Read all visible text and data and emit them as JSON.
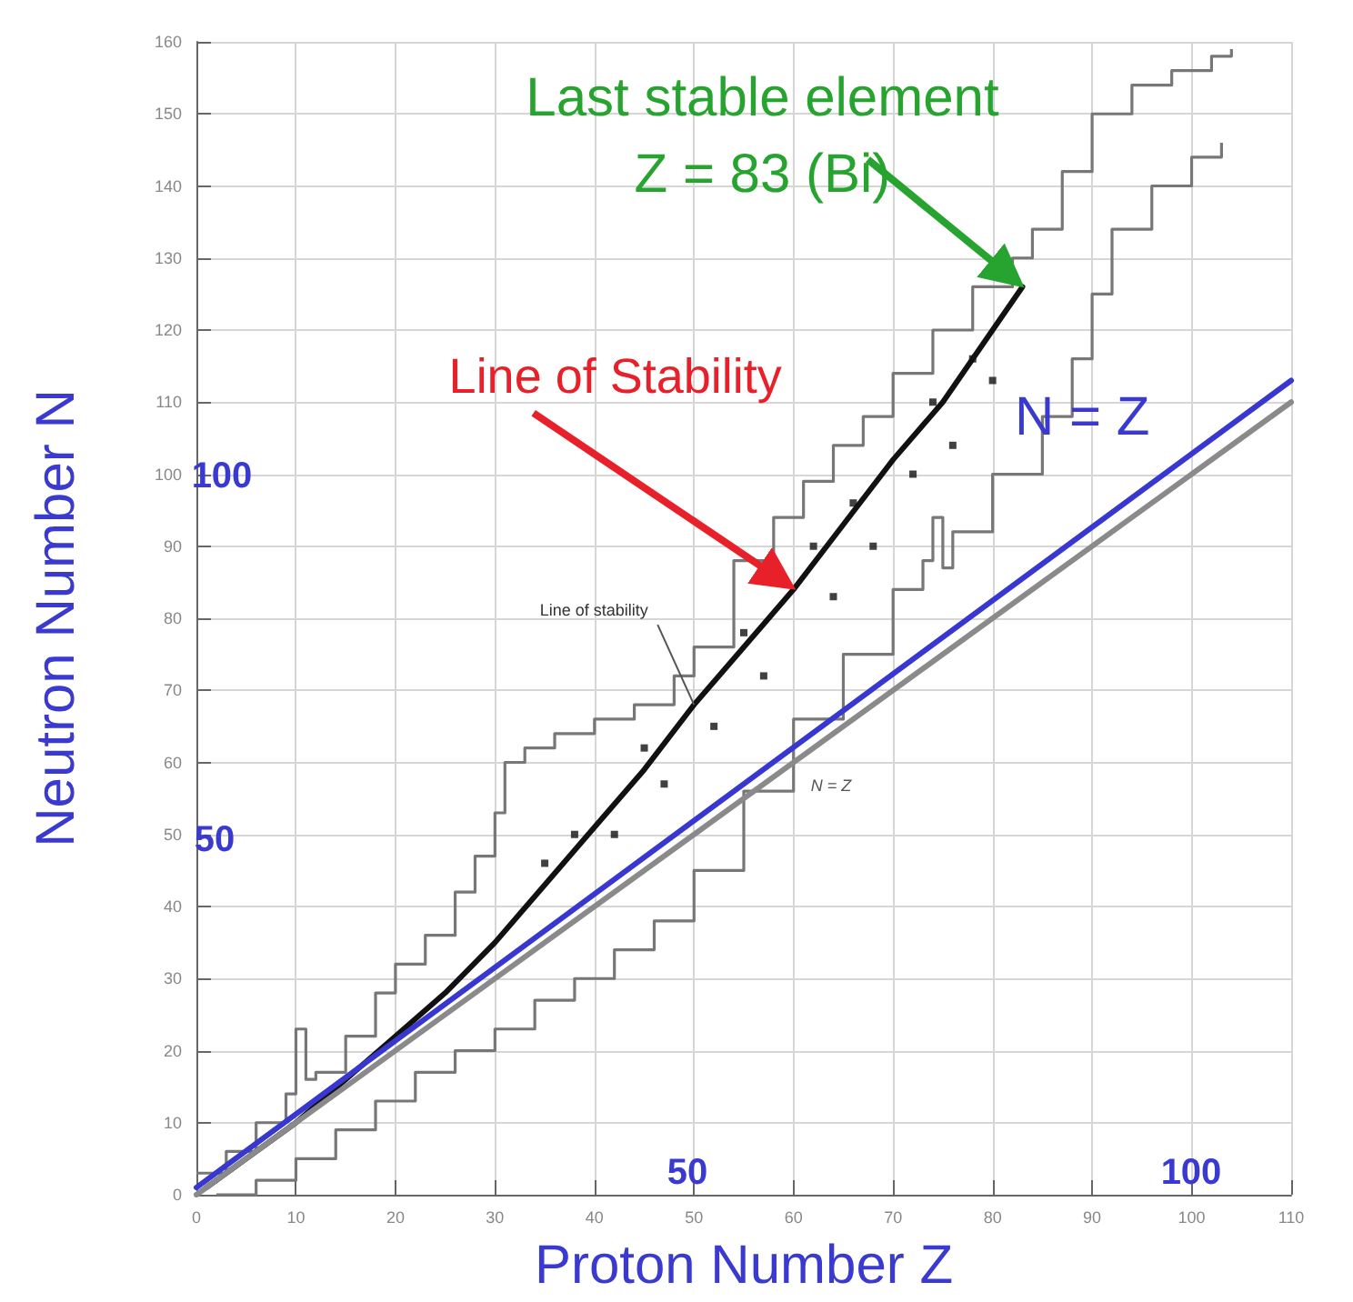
{
  "chart_data": {
    "type": "line",
    "xlabel": "Proton Number Z",
    "ylabel": "Neutron Number N",
    "xlim": [
      0,
      110
    ],
    "xticks": [
      0,
      10,
      20,
      30,
      40,
      50,
      60,
      70,
      80,
      90,
      100,
      110
    ],
    "ylim": [
      0,
      160
    ],
    "yticks": [
      0,
      10,
      20,
      30,
      40,
      50,
      60,
      70,
      80,
      90,
      100,
      110,
      120,
      130,
      140,
      150,
      160
    ],
    "grid": true,
    "marker": "none",
    "line_style": "solid",
    "series": [
      {
        "type": "step",
        "color": "#777777",
        "x": [
          0,
          3,
          6,
          9,
          10,
          11,
          12,
          15,
          18,
          20,
          23,
          26,
          28,
          30,
          31,
          33,
          36,
          40,
          44,
          48,
          50,
          54,
          58,
          61,
          64,
          67,
          70,
          74,
          78,
          82,
          84,
          87,
          90,
          94,
          98,
          102,
          104
        ],
        "values": [
          3,
          6,
          10,
          14,
          23,
          16,
          17,
          22,
          28,
          32,
          36,
          42,
          47,
          53,
          60,
          62,
          64,
          66,
          68,
          72,
          76,
          88,
          94,
          99,
          104,
          108,
          114,
          120,
          126,
          130,
          134,
          142,
          150,
          154,
          156,
          158,
          159
        ]
      },
      {
        "type": "step",
        "color": "#777777",
        "x": [
          2,
          6,
          10,
          14,
          18,
          22,
          26,
          30,
          34,
          38,
          42,
          46,
          50,
          55,
          60,
          65,
          70,
          73,
          74,
          75,
          76,
          80,
          85,
          88,
          90,
          92,
          96,
          100,
          103
        ],
        "values": [
          0,
          2,
          5,
          9,
          13,
          17,
          20,
          23,
          27,
          30,
          34,
          38,
          45,
          56,
          66,
          75,
          84,
          88,
          94,
          87,
          92,
          100,
          108,
          116,
          125,
          134,
          140,
          144,
          146
        ]
      },
      {
        "type": "line",
        "color": "#111111",
        "x": [
          1,
          5,
          10,
          15,
          20,
          25,
          30,
          35,
          40,
          45,
          50,
          55,
          60,
          65,
          70,
          75,
          80,
          83
        ],
        "values": [
          1,
          5,
          10,
          16,
          22,
          28,
          35,
          43,
          51,
          59,
          68,
          76,
          84,
          93,
          102,
          110,
          120,
          126
        ]
      },
      {
        "type": "scatter",
        "marker": "square",
        "color": "#111111",
        "x": [
          35,
          38,
          42,
          45,
          47,
          52,
          55,
          57,
          62,
          64,
          66,
          68,
          72,
          74,
          76,
          78,
          80
        ],
        "values": [
          46,
          50,
          50,
          62,
          57,
          65,
          78,
          72,
          90,
          83,
          96,
          90,
          100,
          110,
          104,
          116,
          113
        ]
      },
      {
        "type": "line",
        "color": "#8a8a8a",
        "x": [
          0,
          110
        ],
        "values": [
          0,
          110
        ]
      },
      {
        "type": "line",
        "color": "#3838d0",
        "x": [
          0,
          110
        ],
        "values": [
          1,
          113
        ]
      }
    ],
    "annotations": [
      {
        "text": "Last stable element\nZ = 83 (Bi)",
        "x": 83,
        "y": 126
      },
      {
        "text": "Line of Stability",
        "x": 60,
        "y": 84
      },
      {
        "text": "Line of stability",
        "x": 50,
        "y": 68
      },
      {
        "text": "N = Z",
        "x": 89,
        "y": 108
      },
      "N = Z",
      "100",
      "50",
      "50",
      "100"
    ]
  }
}
